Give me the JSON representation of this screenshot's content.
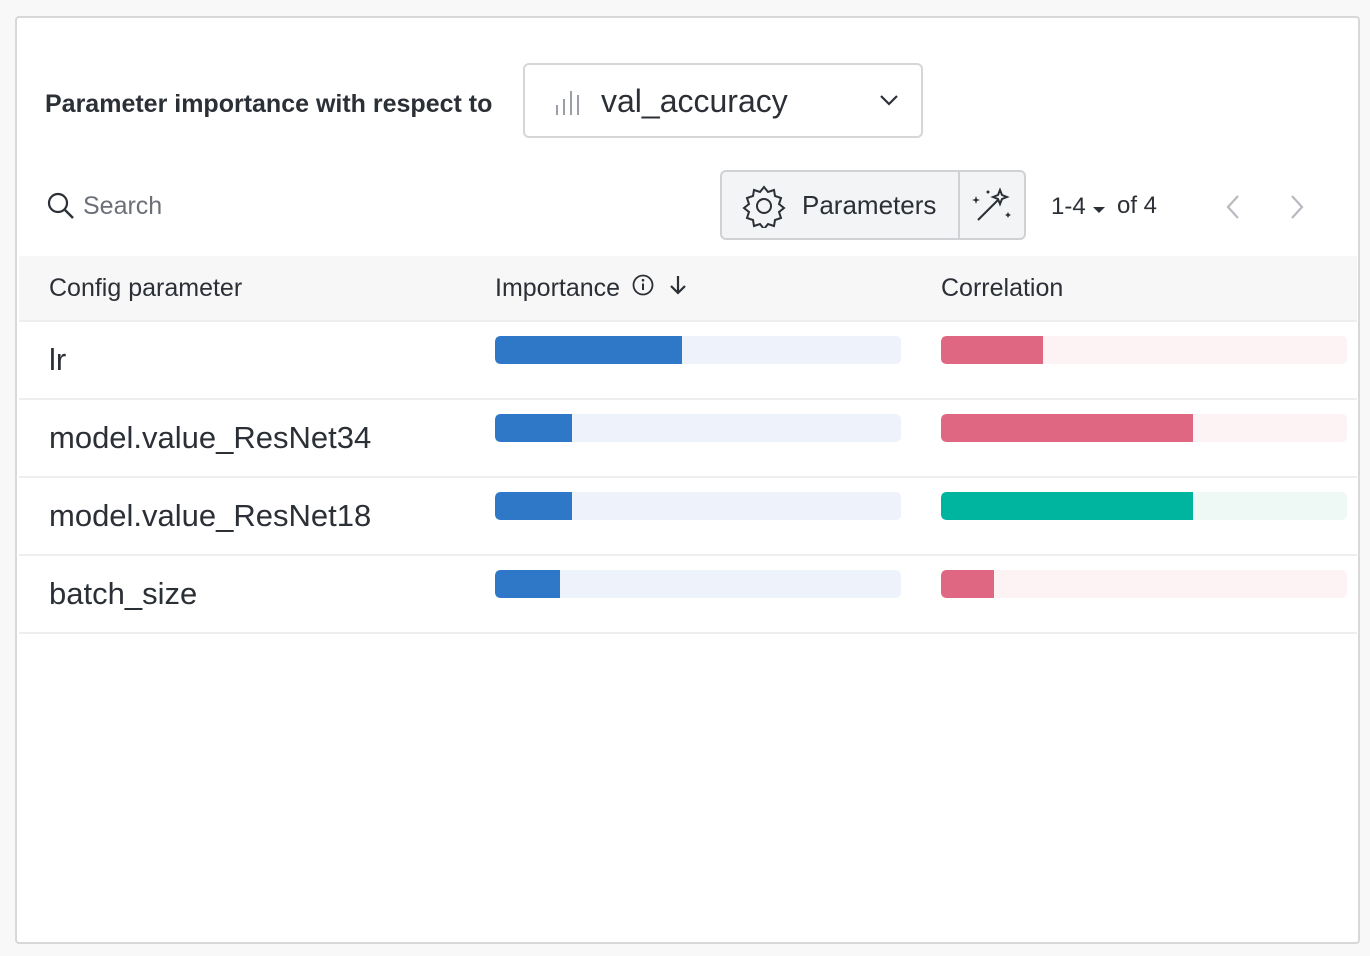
{
  "header": {
    "title": "Parameter importance with respect to",
    "metric": {
      "value": "val_accuracy",
      "icon": "bar-chart-icon"
    }
  },
  "toolbar": {
    "search_placeholder": "Search",
    "parameters_label": "Parameters",
    "pager": {
      "range": "1-4",
      "total": "of 4"
    }
  },
  "table": {
    "columns": {
      "config": "Config parameter",
      "importance": "Importance",
      "correlation": "Correlation"
    },
    "rows": [
      {
        "name": "lr",
        "importance": 0.46,
        "correlation": -0.25
      },
      {
        "name": "model.value_ResNet34",
        "importance": 0.19,
        "correlation": -0.62
      },
      {
        "name": "model.value_ResNet18",
        "importance": 0.19,
        "correlation": 0.62
      },
      {
        "name": "batch_size",
        "importance": 0.16,
        "correlation": -0.13
      }
    ]
  },
  "colors": {
    "importance": "#2f78c7",
    "negative_correlation": "#e06781",
    "positive_correlation": "#00b5a0"
  }
}
